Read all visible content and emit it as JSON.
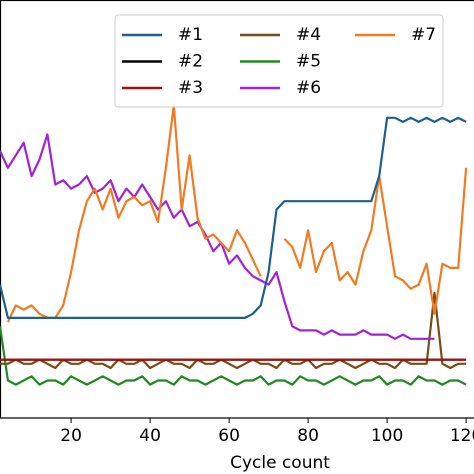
{
  "chart_data": {
    "type": "line",
    "xlabel": "Cycle count",
    "x": [
      2,
      4,
      6,
      8,
      10,
      12,
      14,
      16,
      18,
      20,
      22,
      24,
      26,
      28,
      30,
      32,
      34,
      36,
      38,
      40,
      42,
      44,
      46,
      48,
      50,
      52,
      54,
      56,
      58,
      60,
      62,
      64,
      66,
      68,
      70,
      72,
      74,
      76,
      78,
      80,
      82,
      84,
      86,
      88,
      90,
      92,
      94,
      96,
      98,
      100,
      102,
      104,
      106,
      108,
      110,
      112,
      114,
      116,
      118,
      120
    ],
    "xlim": [
      2,
      122
    ],
    "xticks": [
      20,
      40,
      60,
      80,
      100,
      120
    ],
    "ylim": [
      0,
      1
    ],
    "legend": "upper right",
    "series": [
      {
        "name": "#1",
        "color": "#1f5f8b",
        "values": [
          0.32,
          0.24,
          0.24,
          0.24,
          0.24,
          0.24,
          0.24,
          0.24,
          0.24,
          0.24,
          0.24,
          0.24,
          0.24,
          0.24,
          0.24,
          0.24,
          0.24,
          0.24,
          0.24,
          0.24,
          0.24,
          0.24,
          0.24,
          0.24,
          0.24,
          0.24,
          0.24,
          0.24,
          0.24,
          0.24,
          0.24,
          0.24,
          0.25,
          0.27,
          0.35,
          0.5,
          0.52,
          0.52,
          0.52,
          0.52,
          0.52,
          0.52,
          0.52,
          0.52,
          0.52,
          0.52,
          0.52,
          0.52,
          0.58,
          0.72,
          0.72,
          0.71,
          0.72,
          0.71,
          0.72,
          0.71,
          0.72,
          0.71,
          0.72,
          0.71
        ]
      },
      {
        "name": "#2",
        "color": "#000000",
        "values": [
          0.14,
          0.14,
          0.14,
          0.14,
          0.14,
          0.14,
          0.14,
          0.14,
          0.14,
          0.14,
          0.14,
          0.14,
          0.14,
          0.14,
          0.14,
          0.14,
          0.14,
          0.14,
          0.14,
          0.14,
          0.14,
          0.14,
          0.14,
          0.14,
          0.14,
          0.14,
          0.14,
          0.14,
          0.14,
          0.14,
          0.14,
          0.14,
          0.14,
          0.14,
          0.14,
          0.14,
          0.14,
          0.14,
          0.14,
          0.14,
          0.14,
          0.14,
          0.14,
          0.14,
          0.14,
          0.14,
          0.14,
          0.14,
          0.14,
          0.14,
          0.14,
          0.14,
          0.14,
          0.14,
          0.14,
          0.14,
          0.14,
          0.14,
          0.14,
          0.14
        ]
      },
      {
        "name": "#3",
        "color": "#a3150f",
        "values": [
          0.14,
          0.14,
          0.14,
          0.14,
          0.14,
          0.14,
          0.14,
          0.14,
          0.14,
          0.14,
          0.14,
          0.14,
          0.14,
          0.14,
          0.14,
          0.14,
          0.14,
          0.14,
          0.14,
          0.14,
          0.14,
          0.14,
          0.14,
          0.14,
          0.14,
          0.14,
          0.14,
          0.14,
          0.14,
          0.14,
          0.14,
          0.14,
          0.14,
          0.14,
          0.14,
          0.14,
          0.14,
          0.14,
          0.14,
          0.14,
          0.14,
          0.14,
          0.14,
          0.14,
          0.14,
          0.14,
          0.14,
          0.14,
          0.14,
          0.14,
          0.14,
          0.14,
          0.14,
          0.14,
          0.14,
          0.14,
          0.14,
          0.14,
          0.14,
          0.14
        ]
      },
      {
        "name": "#4",
        "color": "#7a4a17",
        "values": [
          0.13,
          0.13,
          0.14,
          0.13,
          0.13,
          0.14,
          0.13,
          0.12,
          0.14,
          0.13,
          0.13,
          0.14,
          0.13,
          0.13,
          0.12,
          0.14,
          0.13,
          0.13,
          0.14,
          0.12,
          0.13,
          0.14,
          0.13,
          0.13,
          0.12,
          0.14,
          0.13,
          0.13,
          0.14,
          0.13,
          0.12,
          0.13,
          0.14,
          0.13,
          0.13,
          0.12,
          0.14,
          0.13,
          0.13,
          0.14,
          0.12,
          0.13,
          0.13,
          0.14,
          0.13,
          0.12,
          0.13,
          0.14,
          0.13,
          0.13,
          0.12,
          0.14,
          0.13,
          0.13,
          0.13,
          0.3,
          0.13,
          0.12,
          0.13,
          0.13
        ]
      },
      {
        "name": "#5",
        "color": "#1f8a1f",
        "values": [
          0.22,
          0.09,
          0.08,
          0.09,
          0.1,
          0.08,
          0.09,
          0.09,
          0.08,
          0.1,
          0.09,
          0.08,
          0.09,
          0.1,
          0.09,
          0.08,
          0.09,
          0.09,
          0.1,
          0.08,
          0.09,
          0.09,
          0.08,
          0.1,
          0.09,
          0.09,
          0.08,
          0.09,
          0.1,
          0.09,
          0.08,
          0.09,
          0.09,
          0.1,
          0.08,
          0.09,
          0.09,
          0.08,
          0.1,
          0.09,
          0.09,
          0.08,
          0.09,
          0.1,
          0.09,
          0.08,
          0.09,
          0.09,
          0.1,
          0.08,
          0.09,
          0.09,
          0.08,
          0.1,
          0.09,
          0.09,
          0.08,
          0.09,
          0.09,
          0.08
        ]
      },
      {
        "name": "#6",
        "color": "#a521d4",
        "values": [
          0.64,
          0.6,
          0.63,
          0.66,
          0.58,
          0.62,
          0.68,
          0.56,
          0.57,
          0.55,
          0.56,
          0.58,
          0.54,
          0.55,
          0.57,
          0.52,
          0.55,
          0.53,
          0.56,
          0.53,
          0.5,
          0.52,
          0.48,
          0.5,
          0.46,
          0.47,
          0.44,
          0.4,
          0.42,
          0.37,
          0.39,
          0.36,
          0.34,
          0.33,
          0.32,
          0.35,
          0.28,
          0.22,
          0.21,
          0.21,
          0.21,
          0.2,
          0.21,
          0.2,
          0.2,
          0.2,
          0.21,
          0.2,
          0.2,
          0.2,
          0.19,
          0.2,
          0.19,
          0.19,
          0.19,
          0.19,
          null,
          null,
          null,
          null
        ]
      },
      {
        "name": "#7",
        "color": "#f07b22",
        "values": [
          null,
          0.23,
          0.27,
          0.26,
          0.27,
          0.25,
          0.24,
          0.24,
          0.27,
          0.35,
          0.45,
          0.52,
          0.55,
          0.5,
          0.55,
          0.48,
          0.52,
          0.53,
          0.51,
          0.52,
          0.47,
          0.6,
          0.75,
          0.5,
          0.63,
          0.48,
          0.43,
          0.44,
          0.42,
          0.4,
          0.45,
          0.42,
          0.38,
          0.34,
          null,
          null,
          0.43,
          0.41,
          0.36,
          0.45,
          0.35,
          0.4,
          0.42,
          0.33,
          0.35,
          0.32,
          0.4,
          0.45,
          0.58,
          0.46,
          0.34,
          0.33,
          0.31,
          0.32,
          0.37,
          0.25,
          0.37,
          0.36,
          0.36,
          0.6
        ]
      }
    ]
  }
}
